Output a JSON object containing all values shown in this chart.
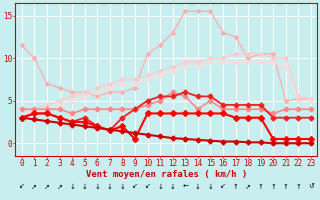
{
  "background_color": "#c8eef0",
  "grid_color": "#ffffff",
  "x_labels": [
    "0",
    "1",
    "2",
    "3",
    "4",
    "5",
    "6",
    "7",
    "8",
    "9",
    "10",
    "11",
    "12",
    "13",
    "14",
    "15",
    "16",
    "17",
    "18",
    "19",
    "20",
    "21",
    "22",
    "23"
  ],
  "xlabel": "Vent moyen/en rafales ( km/h )",
  "ylabel_ticks": [
    0,
    5,
    10,
    15
  ],
  "ylim": [
    -1.5,
    16.5
  ],
  "xlim": [
    -0.5,
    23.5
  ],
  "lines": [
    {
      "y": [
        11.5,
        10.0,
        7.0,
        6.5,
        6.0,
        6.0,
        5.5,
        6.0,
        6.0,
        6.5,
        10.5,
        11.5,
        13.0,
        15.5,
        15.5,
        15.5,
        13.0,
        12.5,
        10.0,
        10.5,
        10.5,
        5.0,
        5.2,
        5.2
      ],
      "color": "#ffb0b0",
      "linewidth": 1.0,
      "marker": "D",
      "markersize": 2.0,
      "zorder": 2
    },
    {
      "y": [
        3.0,
        4.0,
        4.5,
        5.0,
        5.5,
        6.0,
        6.5,
        7.0,
        7.5,
        7.5,
        8.0,
        8.5,
        9.0,
        9.5,
        9.5,
        10.0,
        10.0,
        10.5,
        10.5,
        10.5,
        10.0,
        10.0,
        5.5,
        5.2
      ],
      "color": "#ffcccc",
      "linewidth": 1.0,
      "marker": "D",
      "markersize": 2.0,
      "zorder": 2
    },
    {
      "y": [
        2.8,
        3.5,
        4.0,
        4.5,
        5.0,
        5.5,
        6.0,
        6.5,
        7.0,
        7.0,
        7.5,
        8.0,
        8.5,
        9.0,
        9.0,
        9.5,
        9.5,
        9.5,
        9.5,
        9.5,
        9.5,
        9.0,
        5.0,
        5.0
      ],
      "color": "#ffdddd",
      "linewidth": 1.0,
      "marker": "D",
      "markersize": 2.0,
      "zorder": 2
    },
    {
      "y": [
        4.0,
        4.0,
        4.0,
        4.0,
        3.5,
        4.0,
        4.0,
        4.0,
        4.0,
        4.0,
        4.5,
        5.0,
        6.0,
        5.5,
        4.0,
        5.0,
        4.0,
        4.0,
        4.0,
        4.0,
        3.5,
        4.0,
        4.0,
        4.0
      ],
      "color": "#ff8888",
      "linewidth": 1.2,
      "marker": "D",
      "markersize": 2.5,
      "zorder": 3
    },
    {
      "y": [
        3.0,
        3.5,
        3.5,
        3.0,
        2.5,
        3.0,
        2.0,
        1.5,
        3.0,
        4.0,
        5.0,
        5.5,
        5.5,
        6.0,
        5.5,
        5.5,
        4.5,
        4.5,
        4.5,
        4.5,
        3.0,
        3.0,
        3.0,
        3.0
      ],
      "color": "#ee2222",
      "linewidth": 1.3,
      "marker": "D",
      "markersize": 2.5,
      "zorder": 4
    },
    {
      "y": [
        3.0,
        3.5,
        3.5,
        3.0,
        2.5,
        2.5,
        2.0,
        1.5,
        2.0,
        0.5,
        3.5,
        3.5,
        3.5,
        3.5,
        3.5,
        3.5,
        3.5,
        3.0,
        3.0,
        3.0,
        0.5,
        0.5,
        0.5,
        0.5
      ],
      "color": "#ff0000",
      "linewidth": 1.5,
      "marker": "D",
      "markersize": 3.0,
      "zorder": 5
    },
    {
      "y": [
        3.0,
        2.8,
        2.6,
        2.4,
        2.2,
        2.0,
        1.8,
        1.6,
        1.4,
        1.2,
        1.0,
        0.8,
        0.6,
        0.5,
        0.4,
        0.3,
        0.2,
        0.2,
        0.1,
        0.1,
        0.0,
        0.0,
        0.0,
        0.0
      ],
      "color": "#cc0000",
      "linewidth": 1.5,
      "marker": "D",
      "markersize": 2.5,
      "zorder": 5
    }
  ],
  "arrow_labels": [
    "↙",
    "↗",
    "↗",
    "↗",
    "↓",
    "↓",
    "↓",
    "↓",
    "↓",
    "↙",
    "↙",
    "↓",
    "↓",
    "←",
    "↓",
    "↓",
    "↙",
    "↑",
    "↗",
    "↑",
    "↑",
    "↑",
    "↑",
    "↺"
  ],
  "tick_fontsize": 5.5,
  "arrow_fontsize": 5,
  "xlabel_fontsize": 6.5
}
